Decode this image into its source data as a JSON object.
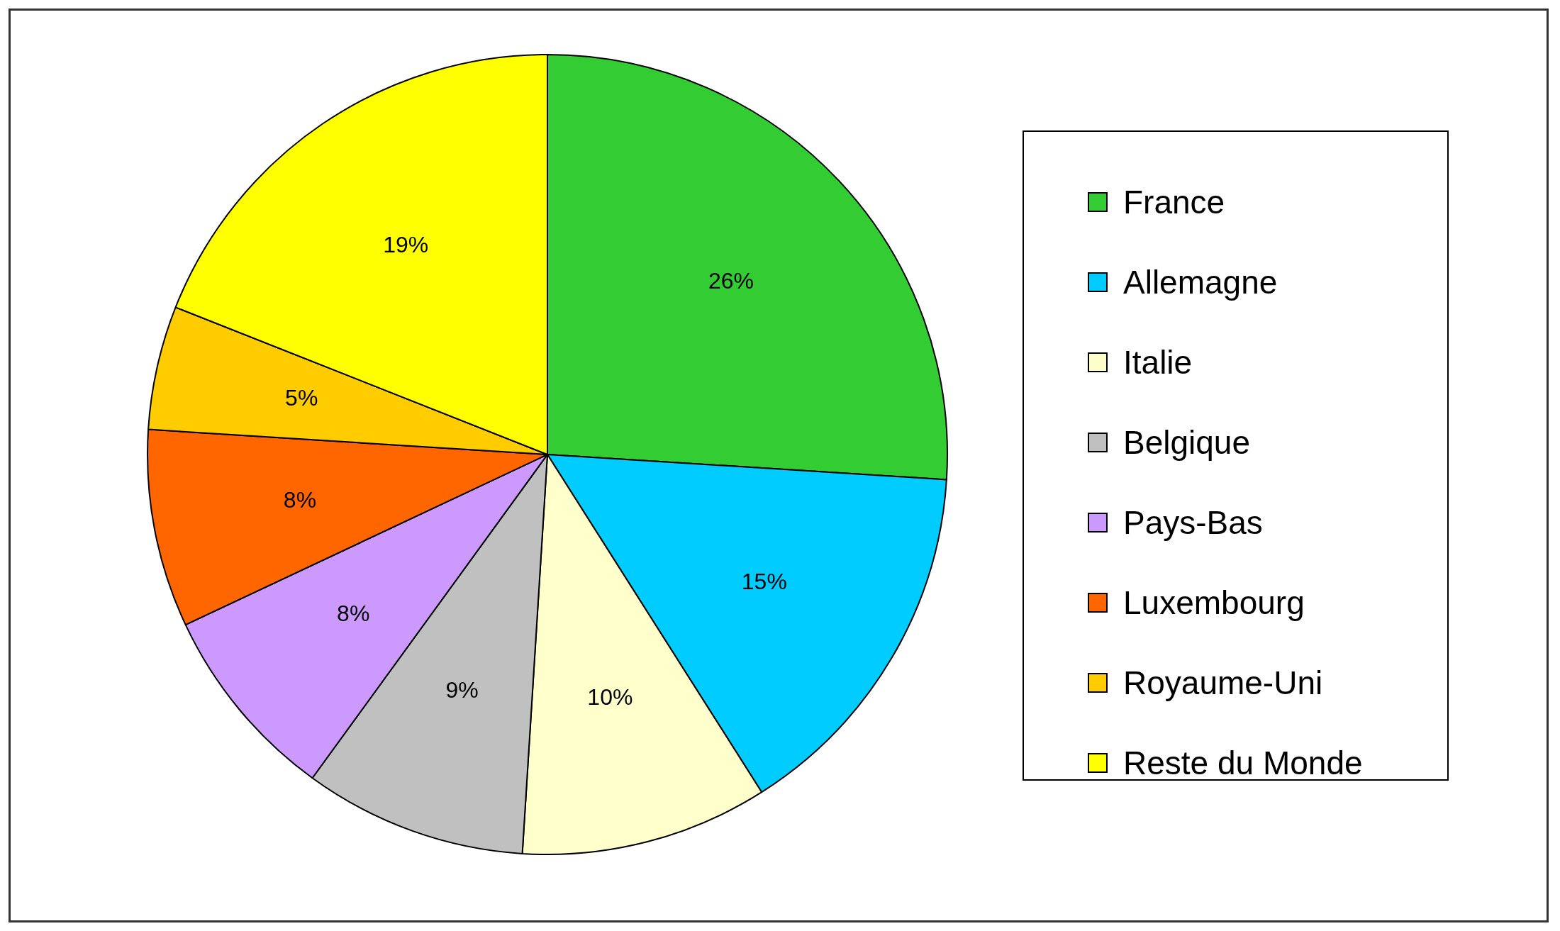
{
  "chart_data": {
    "type": "pie",
    "categories": [
      "France",
      "Allemagne",
      "Italie",
      "Belgique",
      "Pays-Bas",
      "Luxembourg",
      "Royaume-Uni",
      "Reste du Monde"
    ],
    "values": [
      26,
      15,
      10,
      9,
      8,
      8,
      5,
      19
    ],
    "colors": [
      "#33cc33",
      "#00ccff",
      "#ffffcc",
      "#c0c0c0",
      "#cc99ff",
      "#ff6600",
      "#ffcc00",
      "#ffff00"
    ],
    "value_labels": [
      "26%",
      "15%",
      "10%",
      "9%",
      "8%",
      "8%",
      "5%",
      "19%"
    ],
    "legend": "right"
  }
}
